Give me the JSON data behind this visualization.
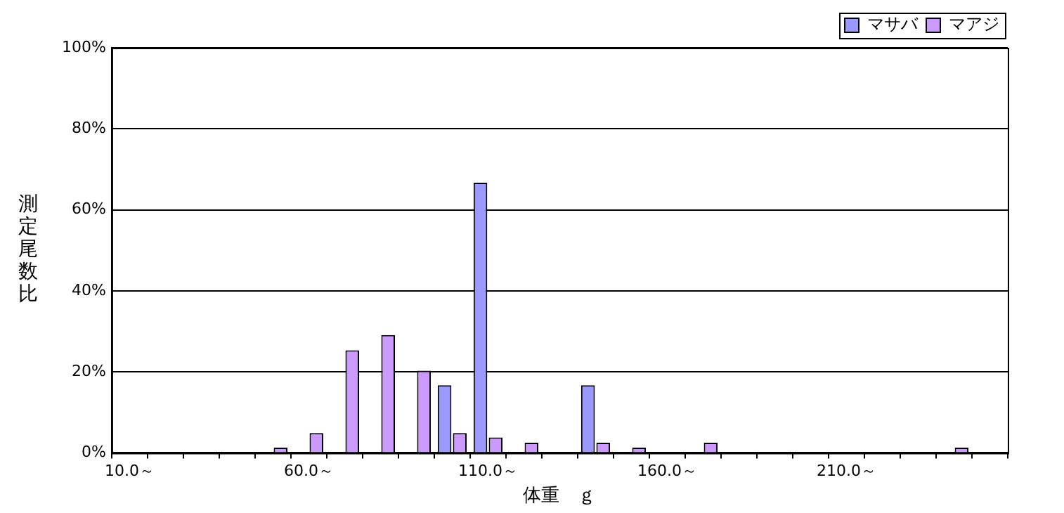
{
  "chart_data": {
    "type": "bar",
    "xlabel": "体重　ｇ",
    "ylabel": "測定尾数比",
    "categories": [
      "10.0～",
      null,
      null,
      null,
      null,
      "60.0～",
      null,
      null,
      null,
      null,
      "110.0～",
      null,
      null,
      null,
      null,
      "160.0～",
      null,
      null,
      null,
      null,
      "210.0～",
      null,
      null,
      null,
      null
    ],
    "series": [
      {
        "name": "マサバ",
        "color": "#9999ff",
        "values": [
          0,
          0,
          0,
          0,
          0,
          0,
          0,
          0,
          0,
          16.7,
          66.7,
          0,
          0,
          16.7,
          0,
          0,
          0,
          0,
          0,
          0,
          0,
          0,
          0,
          0,
          0
        ]
      },
      {
        "name": "マアジ",
        "color": "#cc99ff",
        "values": [
          0,
          0,
          0,
          0,
          1.3,
          4.9,
          25.3,
          29.1,
          20.3,
          4.9,
          3.8,
          2.5,
          0,
          2.5,
          1.3,
          0,
          2.5,
          0,
          0,
          0,
          0,
          0,
          0,
          1.3,
          0
        ]
      }
    ],
    "ylim": [
      0,
      100
    ],
    "yticks": [
      {
        "value": 0,
        "label": "0%"
      },
      {
        "value": 20,
        "label": "20%"
      },
      {
        "value": 40,
        "label": "40%"
      },
      {
        "value": 60,
        "label": "60%"
      },
      {
        "value": 80,
        "label": "80%"
      },
      {
        "value": 100,
        "label": "100%"
      }
    ],
    "grid": "y",
    "legend": "top right"
  }
}
